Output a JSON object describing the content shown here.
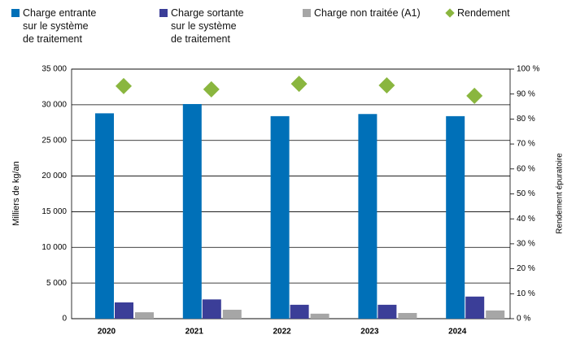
{
  "chart_data": {
    "type": "bar",
    "categories": [
      "2020",
      "2021",
      "2022",
      "2023",
      "2024"
    ],
    "series": [
      {
        "name": "Charge entrante\nsur le système\nde traitement",
        "color": "#0070b8",
        "type": "bar",
        "values": [
          28800,
          30100,
          28400,
          28700,
          28400
        ]
      },
      {
        "name": "Charge sortante\nsur le système\nde traitement",
        "color": "#3b3e98",
        "type": "bar",
        "values": [
          2280,
          2700,
          1950,
          1950,
          3100
        ]
      },
      {
        "name": "Charge non traitée (A1)",
        "color": "#a6a6a6",
        "type": "bar",
        "values": [
          900,
          1250,
          700,
          800,
          1150
        ]
      },
      {
        "name": "Rendement",
        "color": "#8ab63f",
        "type": "scatter",
        "axis": "y2",
        "values": [
          93.2,
          91.9,
          94.1,
          93.5,
          89.3
        ]
      }
    ],
    "ylabel": "Milliers de kg/an",
    "y2label": "Rendement épuratoire",
    "ylim": [
      0,
      35000
    ],
    "yticks": [
      0,
      {
        "value": 5000,
        "label": "5 000"
      },
      {
        "value": 10000,
        "label": "10 000"
      },
      {
        "value": 15000,
        "label": "15 000"
      },
      {
        "value": 20000,
        "label": "20 000"
      },
      {
        "value": 25000,
        "label": "25 000"
      },
      {
        "value": 30000,
        "label": "30 000"
      },
      {
        "value": 35000,
        "label": "35 000"
      }
    ],
    "y2lim": [
      0,
      100
    ],
    "y2ticks": [
      {
        "value": 0,
        "label": "0 %"
      },
      {
        "value": 10,
        "label": "10 %"
      },
      {
        "value": 20,
        "label": "20 %"
      },
      {
        "value": 30,
        "label": "30 %"
      },
      {
        "value": 40,
        "label": "40 %"
      },
      {
        "value": 50,
        "label": "50 %"
      },
      {
        "value": 60,
        "label": "60 %"
      },
      {
        "value": 70,
        "label": "70 %"
      },
      {
        "value": 80,
        "label": "80 %"
      },
      {
        "value": 90,
        "label": "90 %"
      },
      {
        "value": 100,
        "label": "100 %"
      }
    ],
    "grid": true,
    "legend": "top"
  }
}
